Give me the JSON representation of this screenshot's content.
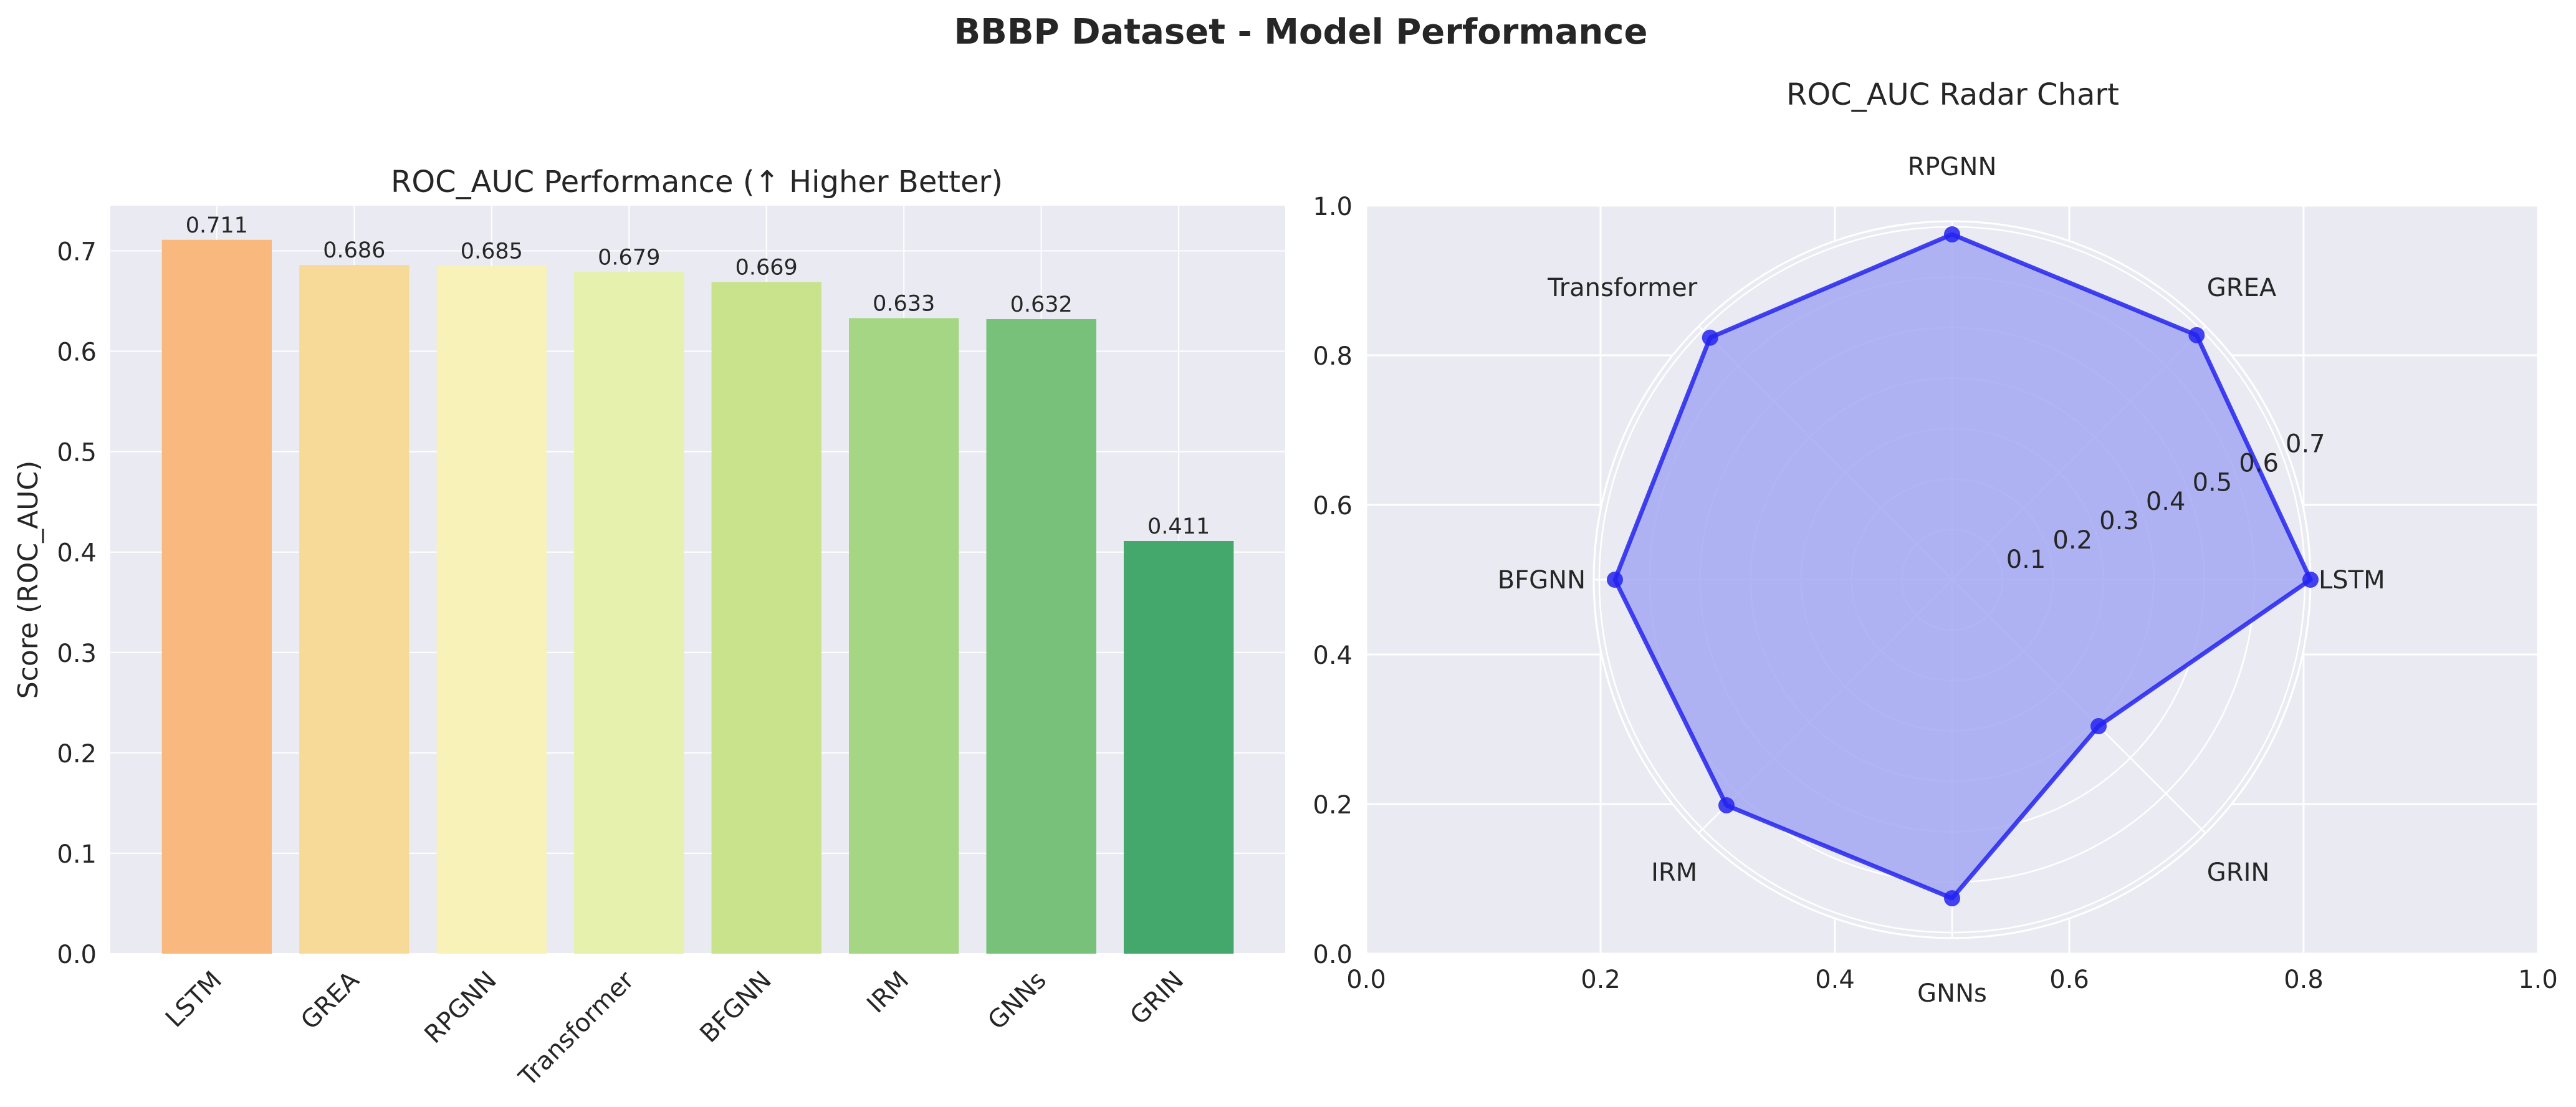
{
  "figure_title": "BBBP Dataset - Model Performance",
  "chart_data": [
    {
      "type": "bar",
      "title": "ROC_AUC Performance (↑ Higher Better)",
      "xlabel": "",
      "ylabel": "Score (ROC_AUC)",
      "categories": [
        "LSTM",
        "GREA",
        "RPGNN",
        "Transformer",
        "BFGNN",
        "IRM",
        "GNNs",
        "GRIN"
      ],
      "values": [
        0.711,
        0.686,
        0.685,
        0.679,
        0.669,
        0.633,
        0.632,
        0.411
      ],
      "data_labels": [
        "0.711",
        "0.686",
        "0.685",
        "0.679",
        "0.669",
        "0.633",
        "0.632",
        "0.411"
      ],
      "colors": [
        "#f8b87e",
        "#f8da98",
        "#f8f1b8",
        "#e5f1ad",
        "#c8e38c",
        "#a5d684",
        "#77c17a",
        "#44a86c"
      ],
      "ylim": [
        0,
        0.745
      ],
      "yticks": [
        "0.0",
        "0.1",
        "0.2",
        "0.3",
        "0.4",
        "0.5",
        "0.6",
        "0.7"
      ],
      "grid": true
    },
    {
      "type": "radar",
      "title": "ROC_AUC Radar Chart",
      "categories": [
        "LSTM",
        "GREA",
        "RPGNN",
        "Transformer",
        "BFGNN",
        "IRM",
        "GNNs",
        "GRIN"
      ],
      "values": [
        0.711,
        0.686,
        0.685,
        0.679,
        0.669,
        0.633,
        0.632,
        0.411
      ],
      "r_ticks": [
        "0.1",
        "0.2",
        "0.3",
        "0.4",
        "0.5",
        "0.6",
        "0.7"
      ],
      "r_max": 0.711,
      "outer_xticks": [
        "0.0",
        "0.2",
        "0.4",
        "0.6",
        "0.8",
        "1.0"
      ],
      "outer_yticks": [
        "0.0",
        "0.2",
        "0.4",
        "0.6",
        "0.8",
        "1.0"
      ],
      "line_color": "#2323f0",
      "fill_color": "#a5a8f2"
    }
  ]
}
